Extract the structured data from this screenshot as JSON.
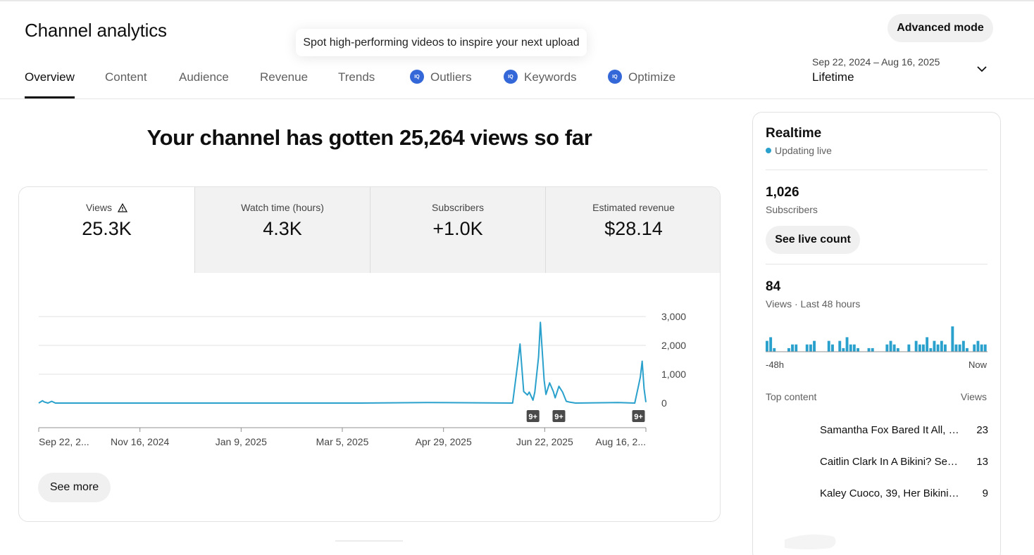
{
  "header": {
    "title": "Channel analytics",
    "tooltip": "Spot high-performing videos to inspire your next upload",
    "advanced_mode": "Advanced mode",
    "date_range": "Sep 22, 2024 – Aug 16, 2025",
    "period": "Lifetime"
  },
  "tabs": [
    {
      "label": "Overview",
      "active": true
    },
    {
      "label": "Content"
    },
    {
      "label": "Audience"
    },
    {
      "label": "Revenue"
    },
    {
      "label": "Trends"
    },
    {
      "label": "Outliers",
      "icon": "iq-icon"
    },
    {
      "label": "Keywords",
      "icon": "iq-icon"
    },
    {
      "label": "Optimize",
      "icon": "iq-icon"
    }
  ],
  "headline": "Your channel has gotten 25,264 views so far",
  "metrics": [
    {
      "label": "Views",
      "value": "25.3K",
      "icon": "warning-icon"
    },
    {
      "label": "Watch time (hours)",
      "value": "4.3K"
    },
    {
      "label": "Subscribers",
      "value": "+1.0K"
    },
    {
      "label": "Estimated revenue",
      "value": "$28.14"
    }
  ],
  "see_more": "See more",
  "chart_data": {
    "type": "line",
    "title": "",
    "xlabel": "",
    "ylabel": "",
    "x_tick_labels": [
      "Sep 22, 2...",
      "Nov 16, 2024",
      "Jan 9, 2025",
      "Mar 5, 2025",
      "Apr 29, 2025",
      "Jun 22, 2025",
      "Aug 16, 2..."
    ],
    "y_tick_labels": [
      "3,000",
      "2,000",
      "1,000",
      "0"
    ],
    "ylim": [
      0,
      3000
    ],
    "grid": true,
    "color": "#2aa1cc",
    "series": [
      {
        "x": [
          "2024-09-22",
          "2024-09-24",
          "2024-09-25",
          "2024-09-27",
          "2024-09-29",
          "2024-10-01",
          "2025-03-15",
          "2025-04-20",
          "2025-06-05",
          "2025-06-08",
          "2025-06-09",
          "2025-06-11",
          "2025-06-13",
          "2025-06-14",
          "2025-06-16",
          "2025-06-17",
          "2025-06-19",
          "2025-06-20",
          "2025-06-22",
          "2025-06-23",
          "2025-06-25",
          "2025-06-27",
          "2025-06-28",
          "2025-06-30",
          "2025-07-02",
          "2025-07-04",
          "2025-07-06",
          "2025-07-09",
          "2025-08-01",
          "2025-08-10",
          "2025-08-12",
          "2025-08-13",
          "2025-08-14",
          "2025-08-15",
          "2025-08-16"
        ],
        "values": [
          0,
          80,
          40,
          0,
          60,
          0,
          0,
          20,
          0,
          1500,
          2050,
          400,
          280,
          380,
          100,
          380,
          1600,
          2800,
          800,
          300,
          700,
          400,
          180,
          580,
          380,
          60,
          30,
          0,
          20,
          0,
          600,
          900,
          1450,
          500,
          30
        ]
      }
    ],
    "annotations": [
      "9+",
      "9+",
      "9+"
    ]
  },
  "realtime": {
    "title": "Realtime",
    "status": "Updating live",
    "subscribers": "1,026",
    "subscribers_label": "Subscribers",
    "live_count_button": "See live count",
    "views": "84",
    "views_label": "Views · Last 48 hours",
    "axis_start": "-48h",
    "axis_end": "Now",
    "spark_values": [
      3,
      4,
      1,
      0,
      0,
      0,
      1,
      2,
      2,
      0,
      0,
      2,
      2,
      3,
      0,
      0,
      0,
      3,
      2,
      0,
      3,
      1,
      4,
      2,
      2,
      1,
      0,
      0,
      1,
      1,
      0,
      0,
      0,
      2,
      3,
      2,
      1,
      0,
      0,
      2,
      0,
      3,
      2,
      2,
      4,
      1,
      3,
      2,
      3,
      2,
      0,
      7,
      2,
      2,
      3,
      1,
      0,
      2,
      3,
      2,
      2
    ],
    "top_content_label": "Top content",
    "views_col_label": "Views",
    "top_content": [
      {
        "title": "Samantha Fox Bared It All, L...",
        "views": "23"
      },
      {
        "title": "Caitlin Clark In A Bikini? See ...",
        "views": "13"
      },
      {
        "title": "Kaley Cuoco, 39, Her Bikini Ph...",
        "views": "9"
      }
    ]
  }
}
